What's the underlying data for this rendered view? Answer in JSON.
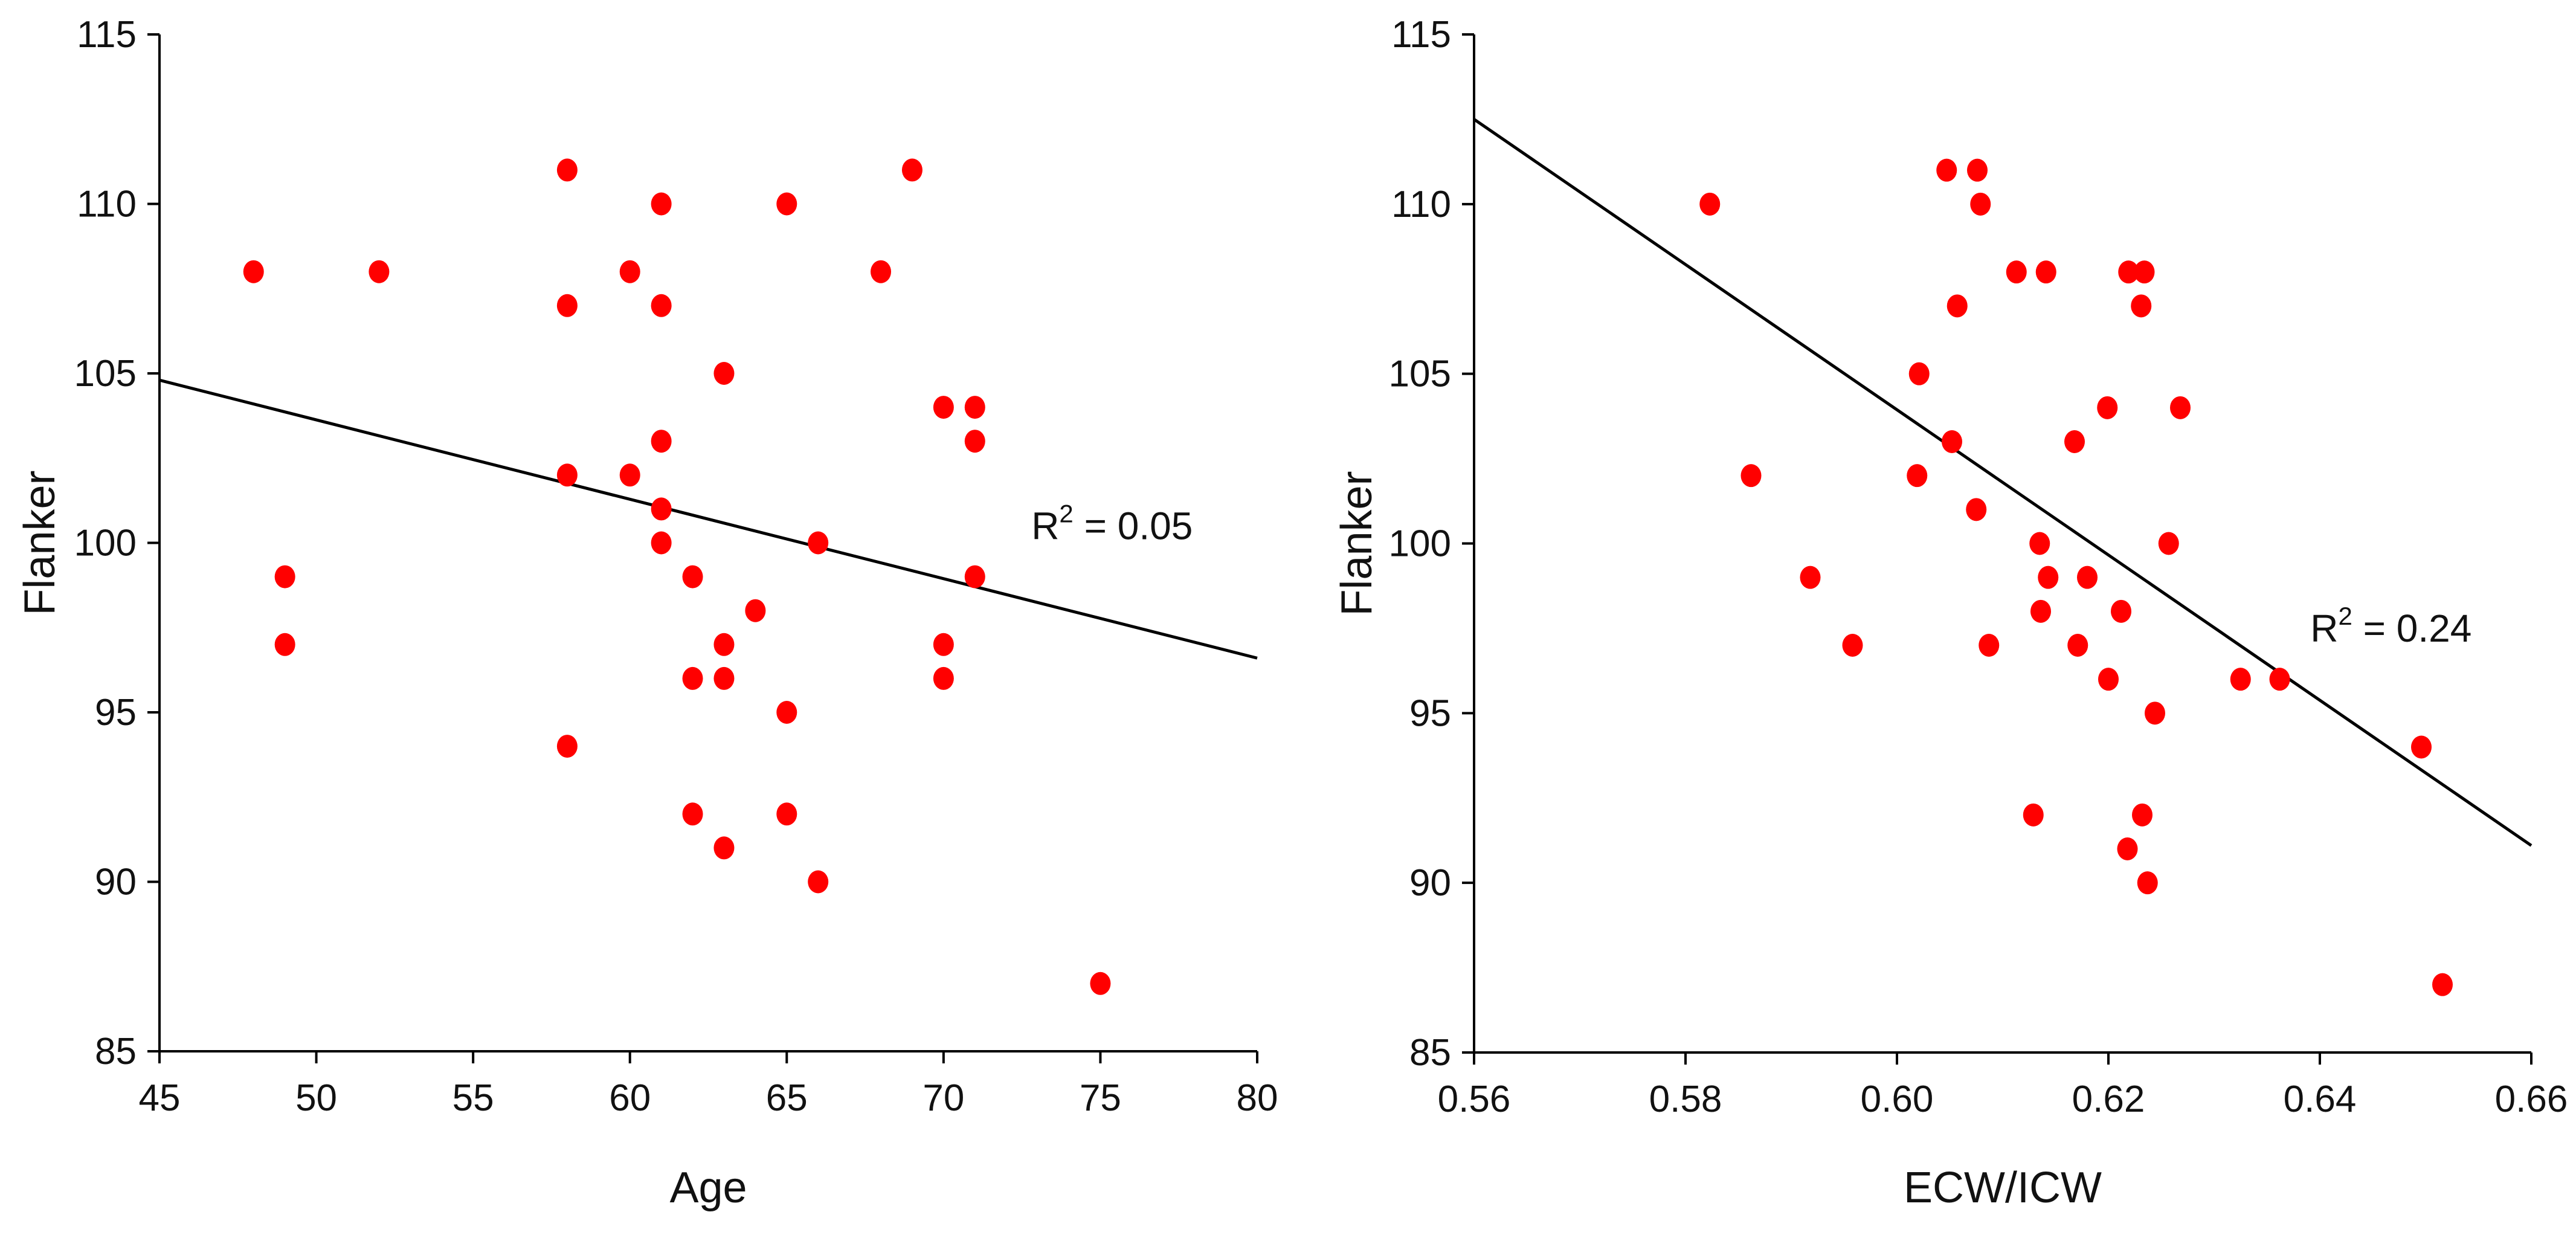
{
  "chart_data": [
    {
      "type": "scatter",
      "title": "",
      "xlabel": "Age",
      "ylabel": "Flanker",
      "xlim": [
        45,
        80
      ],
      "ylim": [
        85,
        115
      ],
      "xticks": [
        45,
        50,
        55,
        60,
        65,
        70,
        75,
        80
      ],
      "xtick_labels": [
        "45",
        "50",
        "55",
        "60",
        "65",
        "70",
        "75",
        "80"
      ],
      "yticks": [
        85,
        90,
        95,
        100,
        105,
        110,
        115
      ],
      "ytick_labels": [
        "85",
        "90",
        "95",
        "100",
        "105",
        "110",
        "115"
      ],
      "grid": false,
      "point_color": "#ff0000",
      "line_color": "#000000",
      "points": [
        [
          48,
          108
        ],
        [
          49,
          99
        ],
        [
          49,
          97
        ],
        [
          52,
          108
        ],
        [
          58,
          111
        ],
        [
          58,
          107
        ],
        [
          58,
          102
        ],
        [
          58,
          94
        ],
        [
          60,
          108
        ],
        [
          60,
          102
        ],
        [
          61,
          110
        ],
        [
          61,
          107
        ],
        [
          61,
          103
        ],
        [
          61,
          101
        ],
        [
          61,
          100
        ],
        [
          62,
          99
        ],
        [
          62,
          96
        ],
        [
          62,
          92
        ],
        [
          63,
          105
        ],
        [
          63,
          97
        ],
        [
          63,
          96
        ],
        [
          63,
          91
        ],
        [
          64,
          98
        ],
        [
          65,
          110
        ],
        [
          65,
          95
        ],
        [
          65,
          92
        ],
        [
          66,
          100
        ],
        [
          66,
          90
        ],
        [
          68,
          108
        ],
        [
          69,
          111
        ],
        [
          70,
          104
        ],
        [
          70,
          97
        ],
        [
          70,
          96
        ],
        [
          71,
          104
        ],
        [
          71,
          103
        ],
        [
          71,
          99
        ],
        [
          75,
          87
        ]
      ],
      "trendline": {
        "x": [
          45,
          80
        ],
        "y": [
          104.8,
          96.6
        ]
      },
      "annotation": {
        "prefix": "R",
        "superscript": "2",
        "suffix": " = 0.05",
        "x": 72.8,
        "y": 100.5
      }
    },
    {
      "type": "scatter",
      "title": "",
      "xlabel": "ECW/ICW",
      "ylabel": "Flanker",
      "xlim": [
        0.56,
        0.66
      ],
      "ylim": [
        85,
        115
      ],
      "xticks": [
        0.56,
        0.58,
        0.6,
        0.62,
        0.64,
        0.66
      ],
      "xtick_labels": [
        "0.56",
        "0.58",
        "0.60",
        "0.62",
        "0.64",
        "0.66"
      ],
      "yticks": [
        85,
        90,
        95,
        100,
        105,
        110,
        115
      ],
      "ytick_labels": [
        "85",
        "90",
        "95",
        "100",
        "105",
        "110",
        "115"
      ],
      "grid": false,
      "point_color": "#ff0000",
      "line_color": "#000000",
      "points": [
        [
          0.5823,
          110
        ],
        [
          0.5862,
          102
        ],
        [
          0.5918,
          99
        ],
        [
          0.5958,
          97
        ],
        [
          0.6019,
          102
        ],
        [
          0.6021,
          105
        ],
        [
          0.6047,
          111
        ],
        [
          0.6052,
          103
        ],
        [
          0.6057,
          107
        ],
        [
          0.6075,
          101
        ],
        [
          0.6076,
          111
        ],
        [
          0.6079,
          110
        ],
        [
          0.6087,
          97
        ],
        [
          0.6113,
          108
        ],
        [
          0.6129,
          92
        ],
        [
          0.6135,
          100
        ],
        [
          0.6136,
          98
        ],
        [
          0.6141,
          108
        ],
        [
          0.6143,
          99
        ],
        [
          0.6168,
          103
        ],
        [
          0.6171,
          97
        ],
        [
          0.618,
          99
        ],
        [
          0.6199,
          104
        ],
        [
          0.62,
          96
        ],
        [
          0.6212,
          98
        ],
        [
          0.6218,
          91
        ],
        [
          0.6219,
          108
        ],
        [
          0.6231,
          107
        ],
        [
          0.6232,
          92
        ],
        [
          0.6234,
          108
        ],
        [
          0.6237,
          90
        ],
        [
          0.6244,
          95
        ],
        [
          0.6257,
          100
        ],
        [
          0.6268,
          104
        ],
        [
          0.6325,
          96
        ],
        [
          0.6362,
          96
        ],
        [
          0.6496,
          94
        ],
        [
          0.6516,
          87
        ]
      ],
      "trendline": {
        "x": [
          0.56,
          0.66
        ],
        "y": [
          112.5,
          91.1
        ]
      },
      "annotation": {
        "prefix": "R",
        "superscript": "2",
        "suffix": " = 0.24",
        "x": 0.6391,
        "y": 97.5
      }
    }
  ]
}
